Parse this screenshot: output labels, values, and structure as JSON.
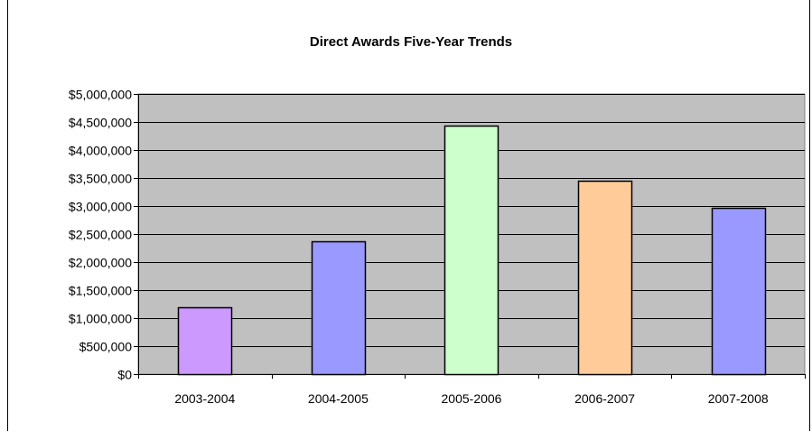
{
  "chart_data": {
    "type": "bar",
    "title": "Direct Awards Five-Year Trends",
    "xlabel": "",
    "ylabel": "",
    "categories": [
      "2003-2004",
      "2004-2005",
      "2005-2006",
      "2006-2007",
      "2007-2008"
    ],
    "values": [
      1200000,
      2370000,
      4430000,
      3450000,
      2970000
    ],
    "bar_colors": [
      "#cc99ff",
      "#9999ff",
      "#ccffcc",
      "#ffcc99",
      "#9999ff"
    ],
    "ylim": [
      0,
      5000000
    ],
    "y_ticks": [
      0,
      500000,
      1000000,
      1500000,
      2000000,
      2500000,
      3000000,
      3500000,
      4000000,
      4500000,
      5000000
    ],
    "y_tick_labels": [
      "$0",
      "$500,000",
      "$1,000,000",
      "$1,500,000",
      "$2,000,000",
      "$2,500,000",
      "$3,000,000",
      "$3,500,000",
      "$4,000,000",
      "$4,500,000",
      "$5,000,000"
    ],
    "plot_background": "#c0c0c0",
    "grid": true,
    "legend": "none"
  }
}
